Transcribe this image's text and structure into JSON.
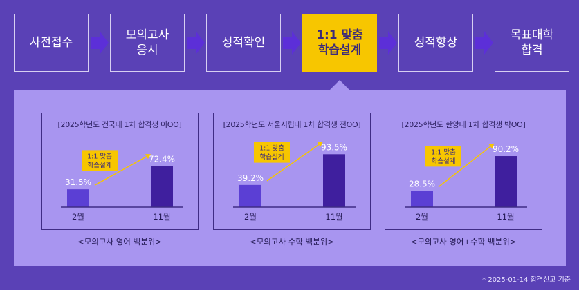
{
  "steps": [
    {
      "label": "사전접수"
    },
    {
      "label": "모의고사\n응시"
    },
    {
      "label": "성적확인"
    },
    {
      "label": "1:1 맞춤\n학습설계"
    },
    {
      "label": "성적향상"
    },
    {
      "label": "목표대학\n합격"
    }
  ],
  "active_step_label": "1:1 맞춤 학습설계",
  "colors": {
    "background": "#5a41b6",
    "panel": "#a895f0",
    "active_step": "#f7c600",
    "bar_before": "#5b3fd4",
    "bar_after": "#3f1f9e",
    "arrow": "#f7c600"
  },
  "callout": {
    "line1": "1:1 맞춤",
    "line2": "학습설계"
  },
  "chart_data": [
    {
      "type": "bar",
      "title": "[2025학년도 건국대 1차 합격생 이OO]",
      "categories": [
        "2월",
        "11월"
      ],
      "values": [
        31.5,
        72.4
      ],
      "value_labels": [
        "31.5%",
        "72.4%"
      ],
      "caption": "<모의고사 영어 백분위>",
      "ylim": [
        0,
        100
      ]
    },
    {
      "type": "bar",
      "title": "[2025학년도 서울시립대 1차 합격생 전OO]",
      "categories": [
        "2월",
        "11월"
      ],
      "values": [
        39.2,
        93.5
      ],
      "value_labels": [
        "39.2%",
        "93.5%"
      ],
      "caption": "<모의고사 수학 백분위>",
      "ylim": [
        0,
        100
      ]
    },
    {
      "type": "bar",
      "title": "[2025학년도 한양대 1차 합격생 박OO]",
      "categories": [
        "2월",
        "11월"
      ],
      "values": [
        28.5,
        90.2
      ],
      "value_labels": [
        "28.5%",
        "90.2%"
      ],
      "caption": "<모의고사 영어+수학 백분위>",
      "ylim": [
        0,
        100
      ]
    }
  ],
  "footnote": "* 2025-01-14 합격신고 기준"
}
